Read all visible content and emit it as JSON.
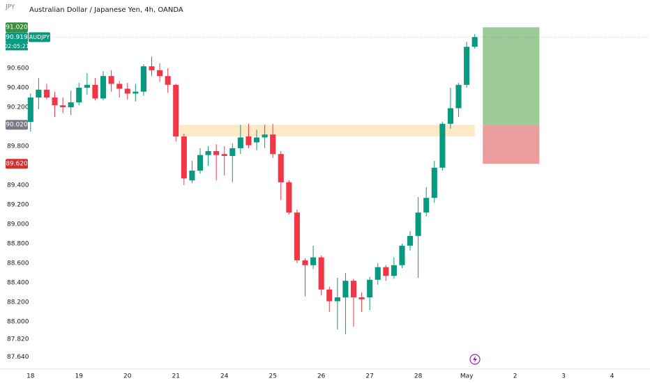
{
  "chart_data": {
    "type": "candlestick",
    "symbol_short": "JPY",
    "title": "Australian Dollar / Japanese Yen, 4h, OANDA",
    "up_color": "#089981",
    "down_color": "#f23645",
    "open": [
      90.05,
      90.3,
      90.38,
      90.3,
      90.22,
      90.2,
      90.25,
      90.4,
      90.43,
      90.29,
      90.52,
      90.44,
      90.39,
      90.34,
      90.36,
      90.62,
      90.58,
      90.52,
      90.43,
      89.9,
      89.45,
      89.55,
      89.71,
      89.75,
      89.72,
      89.7,
      89.78,
      89.9,
      89.84,
      89.89,
      89.92,
      89.72,
      89.43,
      89.12,
      88.63,
      88.58,
      88.66,
      88.33,
      88.21,
      88.25,
      88.42,
      88.25,
      88.25,
      88.43,
      88.56,
      88.47,
      88.58,
      88.78,
      88.88,
      89.12,
      89.27,
      89.58,
      90.03,
      90.19,
      90.43,
      90.82
    ],
    "high": [
      90.34,
      90.5,
      90.44,
      90.36,
      90.3,
      90.37,
      90.45,
      90.55,
      90.5,
      90.57,
      90.58,
      90.47,
      90.45,
      90.44,
      90.64,
      90.72,
      90.65,
      90.6,
      90.44,
      89.93,
      89.65,
      89.78,
      89.8,
      89.82,
      89.8,
      89.83,
      90.02,
      90.03,
      89.97,
      90.02,
      90.03,
      89.75,
      89.45,
      89.15,
      88.65,
      88.78,
      88.68,
      88.36,
      88.45,
      88.5,
      88.44,
      88.3,
      88.46,
      88.6,
      88.58,
      88.66,
      88.8,
      88.93,
      89.28,
      89.38,
      89.65,
      90.05,
      90.4,
      90.45,
      90.87,
      90.95
    ],
    "low": [
      89.95,
      90.18,
      90.28,
      90.1,
      90.14,
      90.12,
      90.22,
      90.33,
      90.27,
      90.27,
      90.36,
      90.3,
      90.28,
      90.26,
      90.32,
      90.52,
      90.46,
      90.35,
      89.85,
      89.4,
      89.42,
      89.52,
      89.6,
      89.45,
      89.5,
      89.43,
      89.72,
      89.78,
      89.76,
      89.78,
      89.68,
      89.25,
      89.1,
      88.6,
      88.26,
      88.54,
      88.27,
      88.1,
      87.92,
      87.87,
      87.95,
      88.1,
      88.12,
      88.38,
      88.42,
      88.44,
      88.55,
      88.73,
      88.45,
      89.08,
      89.22,
      89.55,
      89.98,
      90.1,
      90.4,
      90.8
    ],
    "close": [
      90.3,
      90.38,
      90.3,
      90.22,
      90.2,
      90.25,
      90.4,
      90.43,
      90.29,
      90.52,
      90.44,
      90.39,
      90.34,
      90.36,
      90.62,
      90.58,
      90.52,
      90.43,
      89.9,
      89.47,
      89.55,
      89.71,
      89.75,
      89.71,
      89.7,
      89.78,
      89.89,
      89.81,
      89.89,
      89.92,
      89.72,
      89.43,
      89.12,
      88.63,
      88.58,
      88.66,
      88.33,
      88.21,
      88.25,
      88.42,
      88.25,
      88.23,
      88.43,
      88.56,
      88.47,
      88.58,
      88.78,
      88.88,
      89.12,
      89.27,
      89.58,
      90.03,
      90.19,
      90.43,
      90.82,
      90.92
    ],
    "xlim": [
      -0.5,
      76.7
    ],
    "xticks": [
      {
        "value": 0,
        "label": "18"
      },
      {
        "value": 6,
        "label": "19"
      },
      {
        "value": 12,
        "label": "20"
      },
      {
        "value": 18,
        "label": "21"
      },
      {
        "value": 24,
        "label": "24"
      },
      {
        "value": 30,
        "label": "25"
      },
      {
        "value": 36,
        "label": "26"
      },
      {
        "value": 42,
        "label": "27"
      },
      {
        "value": 48,
        "label": "28"
      },
      {
        "value": 54,
        "label": "May"
      },
      {
        "value": 60,
        "label": "2"
      },
      {
        "value": 66,
        "label": "3"
      },
      {
        "value": 72,
        "label": "4"
      }
    ],
    "ylim": [
      87.5,
      91.3
    ],
    "yticks": [
      {
        "value": 90.6,
        "label": "90.600"
      },
      {
        "value": 90.4,
        "label": "90.400"
      },
      {
        "value": 90.2,
        "label": "90.200"
      },
      {
        "value": 89.8,
        "label": "89.800"
      },
      {
        "value": 89.4,
        "label": "89.400"
      },
      {
        "value": 89.2,
        "label": "89.200"
      },
      {
        "value": 89.0,
        "label": "89.000"
      },
      {
        "value": 88.8,
        "label": "88.800"
      },
      {
        "value": 88.6,
        "label": "88.600"
      },
      {
        "value": 88.4,
        "label": "88.400"
      },
      {
        "value": 88.2,
        "label": "88.200"
      },
      {
        "value": 88.0,
        "label": "88.000"
      },
      {
        "value": 87.82,
        "label": "87.820"
      },
      {
        "value": 87.64,
        "label": "87.640"
      }
    ],
    "zone": {
      "top": 90.02,
      "bottom": 89.9,
      "start": 18.5,
      "end": 55,
      "color": "#fde9c4"
    },
    "position": {
      "target": 91.02,
      "entry": 90.02,
      "stop": 89.62,
      "start": 56,
      "end": 63,
      "profit_color": "#9ccb97",
      "loss_color": "#eb9c9c"
    },
    "last_price": {
      "value": 90.919,
      "label": "90.919",
      "symbol": "AUDJPY",
      "countdown": "02:05:21",
      "color": "#089981"
    },
    "price_labels": [
      {
        "value": 91.02,
        "label": "91.020",
        "color": "#3b8d3e"
      },
      {
        "value": 90.02,
        "label": "90.020",
        "color": "#787b86"
      },
      {
        "value": 89.62,
        "label": "89.620",
        "color": "#d32f2f"
      }
    ]
  }
}
